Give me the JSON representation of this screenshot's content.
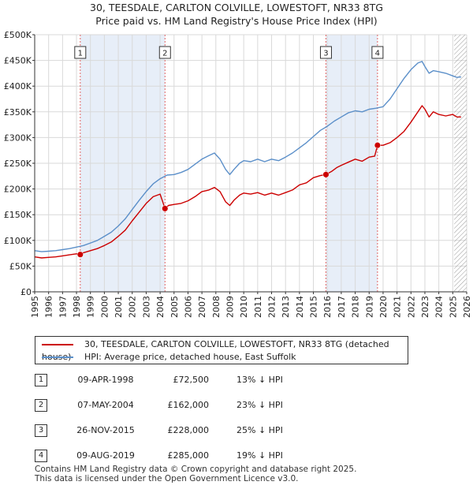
{
  "title_line1": "30, TEESDALE, CARLTON COLVILLE, LOWESTOFT, NR33 8TG",
  "title_line2": "Price paid vs. HM Land Registry's House Price Index (HPI)",
  "chart_data": {
    "type": "line",
    "xlim": [
      1995,
      2026
    ],
    "ylim": [
      0,
      500000
    ],
    "yticks": [
      {
        "value": 0,
        "label": "£0"
      },
      {
        "value": 50000,
        "label": "£50K"
      },
      {
        "value": 100000,
        "label": "£100K"
      },
      {
        "value": 150000,
        "label": "£150K"
      },
      {
        "value": 200000,
        "label": "£200K"
      },
      {
        "value": 250000,
        "label": "£250K"
      },
      {
        "value": 300000,
        "label": "£300K"
      },
      {
        "value": 350000,
        "label": "£350K"
      },
      {
        "value": 400000,
        "label": "£400K"
      },
      {
        "value": 450000,
        "label": "£450K"
      },
      {
        "value": 500000,
        "label": "£500K"
      }
    ],
    "xticks": [
      "1995",
      "1996",
      "1997",
      "1998",
      "1999",
      "2000",
      "2001",
      "2002",
      "2003",
      "2004",
      "2005",
      "2006",
      "2007",
      "2008",
      "2009",
      "2010",
      "2011",
      "2012",
      "2013",
      "2014",
      "2015",
      "2016",
      "2017",
      "2018",
      "2019",
      "2020",
      "2021",
      "2022",
      "2023",
      "2024",
      "2025",
      "2026"
    ],
    "grid": true,
    "shaded_periods": [
      [
        1998.27,
        2004.35
      ],
      [
        2015.9,
        2019.6
      ]
    ],
    "data_end_hatch_from": 2025.1,
    "series": [
      {
        "name": "30, TEESDALE, CARLTON COLVILLE, LOWESTOFT, NR33 8TG (detached house)",
        "color": "#cc0000",
        "x": [
          1995.0,
          1995.5,
          1996.0,
          1996.5,
          1997.0,
          1997.5,
          1998.0,
          1998.27,
          1998.5,
          1999.0,
          1999.5,
          2000.0,
          2000.5,
          2001.0,
          2001.5,
          2002.0,
          2002.5,
          2003.0,
          2003.5,
          2004.0,
          2004.35,
          2004.6,
          2005.0,
          2005.5,
          2006.0,
          2006.5,
          2007.0,
          2007.5,
          2007.9,
          2008.3,
          2008.7,
          2009.0,
          2009.3,
          2009.7,
          2010.0,
          2010.5,
          2011.0,
          2011.5,
          2012.0,
          2012.5,
          2013.0,
          2013.5,
          2014.0,
          2014.5,
          2015.0,
          2015.5,
          2015.9,
          2016.3,
          2016.7,
          2017.0,
          2017.5,
          2018.0,
          2018.5,
          2019.0,
          2019.4,
          2019.6,
          2020.0,
          2020.5,
          2021.0,
          2021.5,
          2022.0,
          2022.5,
          2022.8,
          2023.0,
          2023.3,
          2023.6,
          2024.0,
          2024.5,
          2025.0,
          2025.3,
          2025.6
        ],
        "y": [
          68000,
          66000,
          67000,
          68000,
          70000,
          72000,
          74000,
          72500,
          76000,
          80000,
          84000,
          90000,
          97000,
          108000,
          120000,
          138000,
          155000,
          172000,
          185000,
          190000,
          162000,
          168000,
          170000,
          172000,
          177000,
          185000,
          195000,
          198000,
          203000,
          195000,
          175000,
          168000,
          178000,
          188000,
          192000,
          190000,
          193000,
          188000,
          192000,
          188000,
          193000,
          198000,
          208000,
          212000,
          222000,
          226000,
          228000,
          234000,
          242000,
          246000,
          252000,
          258000,
          254000,
          262000,
          264000,
          285000,
          285000,
          290000,
          300000,
          312000,
          330000,
          350000,
          362000,
          355000,
          340000,
          350000,
          345000,
          342000,
          345000,
          340000,
          340000
        ]
      },
      {
        "name": "HPI: Average price, detached house, East Suffolk",
        "color": "#5b8fc9",
        "x": [
          1995.0,
          1995.5,
          1996.0,
          1996.5,
          1997.0,
          1997.5,
          1998.0,
          1998.5,
          1999.0,
          1999.5,
          2000.0,
          2000.5,
          2001.0,
          2001.5,
          2002.0,
          2002.5,
          2003.0,
          2003.5,
          2004.0,
          2004.5,
          2005.0,
          2005.5,
          2006.0,
          2006.5,
          2007.0,
          2007.5,
          2007.9,
          2008.3,
          2008.7,
          2009.0,
          2009.3,
          2009.7,
          2010.0,
          2010.5,
          2011.0,
          2011.5,
          2012.0,
          2012.5,
          2013.0,
          2013.5,
          2014.0,
          2014.5,
          2015.0,
          2015.5,
          2016.0,
          2016.5,
          2017.0,
          2017.5,
          2018.0,
          2018.5,
          2019.0,
          2019.5,
          2020.0,
          2020.5,
          2021.0,
          2021.5,
          2022.0,
          2022.5,
          2022.8,
          2023.0,
          2023.3,
          2023.6,
          2024.0,
          2024.5,
          2025.0,
          2025.3,
          2025.6
        ],
        "y": [
          80000,
          78000,
          79000,
          80000,
          82000,
          84000,
          87000,
          90000,
          95000,
          100000,
          108000,
          116000,
          128000,
          142000,
          160000,
          178000,
          195000,
          210000,
          220000,
          227000,
          228000,
          232000,
          238000,
          248000,
          258000,
          265000,
          270000,
          258000,
          238000,
          228000,
          238000,
          250000,
          255000,
          253000,
          258000,
          253000,
          258000,
          255000,
          262000,
          270000,
          280000,
          290000,
          302000,
          314000,
          322000,
          332000,
          340000,
          348000,
          352000,
          350000,
          355000,
          357000,
          360000,
          375000,
          395000,
          415000,
          432000,
          445000,
          448000,
          438000,
          425000,
          430000,
          428000,
          425000,
          420000,
          417000,
          418000
        ]
      }
    ],
    "sale_markers": [
      {
        "label": "1",
        "x": 1998.27,
        "y": 72500
      },
      {
        "label": "2",
        "x": 2004.35,
        "y": 162000
      },
      {
        "label": "3",
        "x": 2015.9,
        "y": 228000
      },
      {
        "label": "4",
        "x": 2019.6,
        "y": 285000
      }
    ]
  },
  "legend": {
    "property_label": "30, TEESDALE, CARLTON COLVILLE, LOWESTOFT, NR33 8TG (detached house)",
    "hpi_label": "HPI: Average price, detached house, East Suffolk",
    "property_color": "#cc0000",
    "hpi_color": "#5b8fc9"
  },
  "sales": [
    {
      "num": "1",
      "date": "09-APR-1998",
      "price": "£72,500",
      "hpi": "13% ↓ HPI"
    },
    {
      "num": "2",
      "date": "07-MAY-2004",
      "price": "£162,000",
      "hpi": "23% ↓ HPI"
    },
    {
      "num": "3",
      "date": "26-NOV-2015",
      "price": "£228,000",
      "hpi": "25% ↓ HPI"
    },
    {
      "num": "4",
      "date": "09-AUG-2019",
      "price": "£285,000",
      "hpi": "19% ↓ HPI"
    }
  ],
  "footer": {
    "line1": "Contains HM Land Registry data © Crown copyright and database right 2025.",
    "line2": "This data is licensed under the Open Government Licence v3.0."
  }
}
